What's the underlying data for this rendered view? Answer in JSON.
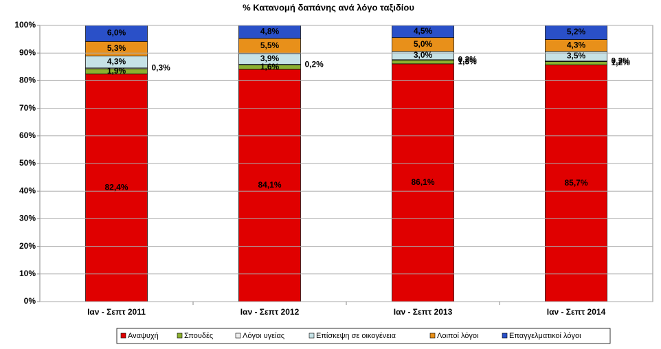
{
  "chart_data": {
    "type": "stacked_bar",
    "title": "% Κατανομή δαπάνης ανά λόγο ταξιδίου",
    "categories": [
      "Ιαν - Σεπτ  2011",
      "Ιαν - Σεπτ  2012",
      "Ιαν - Σεπτ  2013",
      "Ιαν - Σεπτ  2014"
    ],
    "series": [
      {
        "name": "Αναψυχή",
        "color": "#e00000",
        "values": [
          82.4,
          84.1,
          86.1,
          85.7
        ],
        "value_labels": [
          "82,4%",
          "84,1%",
          "86,1%",
          "85,7%"
        ]
      },
      {
        "name": "Σπουδές",
        "color": "#8cb030",
        "values": [
          1.9,
          1.6,
          1.3,
          1.2
        ],
        "value_labels": [
          "1,9%",
          "1,6%",
          "1,3%",
          "1,2%"
        ]
      },
      {
        "name": "Λόγοι υγείας",
        "color": "#eeeeee",
        "values": [
          0.3,
          0.2,
          0.2,
          0.2
        ],
        "value_labels": [
          "0,3%",
          "0,2%",
          "0,2%",
          "0,2%"
        ]
      },
      {
        "name": "Επίσκεψη σε οικογένεια",
        "color": "#c6e2e6",
        "values": [
          4.3,
          3.9,
          3.0,
          3.5
        ],
        "value_labels": [
          "4,3%",
          "3,9%",
          "3,0%",
          "3,5%"
        ]
      },
      {
        "name": "Λοιποί λόγοι",
        "color": "#e8901a",
        "values": [
          5.3,
          5.5,
          5.0,
          4.3
        ],
        "value_labels": [
          "5,3%",
          "5,5%",
          "5,0%",
          "4,3%"
        ]
      },
      {
        "name": "Επαγγελματικοί λόγοι",
        "color": "#2a50c8",
        "values": [
          6.0,
          4.8,
          4.5,
          5.2
        ],
        "value_labels": [
          "6,0%",
          "4,8%",
          "4,5%",
          "5,2%"
        ]
      }
    ],
    "ylim": [
      0,
      100
    ],
    "yticks": [
      {
        "value": 0,
        "label": "0%"
      },
      {
        "value": 10,
        "label": "10%"
      },
      {
        "value": 20,
        "label": "20%"
      },
      {
        "value": 30,
        "label": "30%"
      },
      {
        "value": 40,
        "label": "40%"
      },
      {
        "value": 50,
        "label": "50%"
      },
      {
        "value": 60,
        "label": "60%"
      },
      {
        "value": 70,
        "label": "70%"
      },
      {
        "value": 80,
        "label": "80%"
      },
      {
        "value": 90,
        "label": "90%"
      },
      {
        "value": 100,
        "label": "100%"
      }
    ],
    "grid": true
  }
}
